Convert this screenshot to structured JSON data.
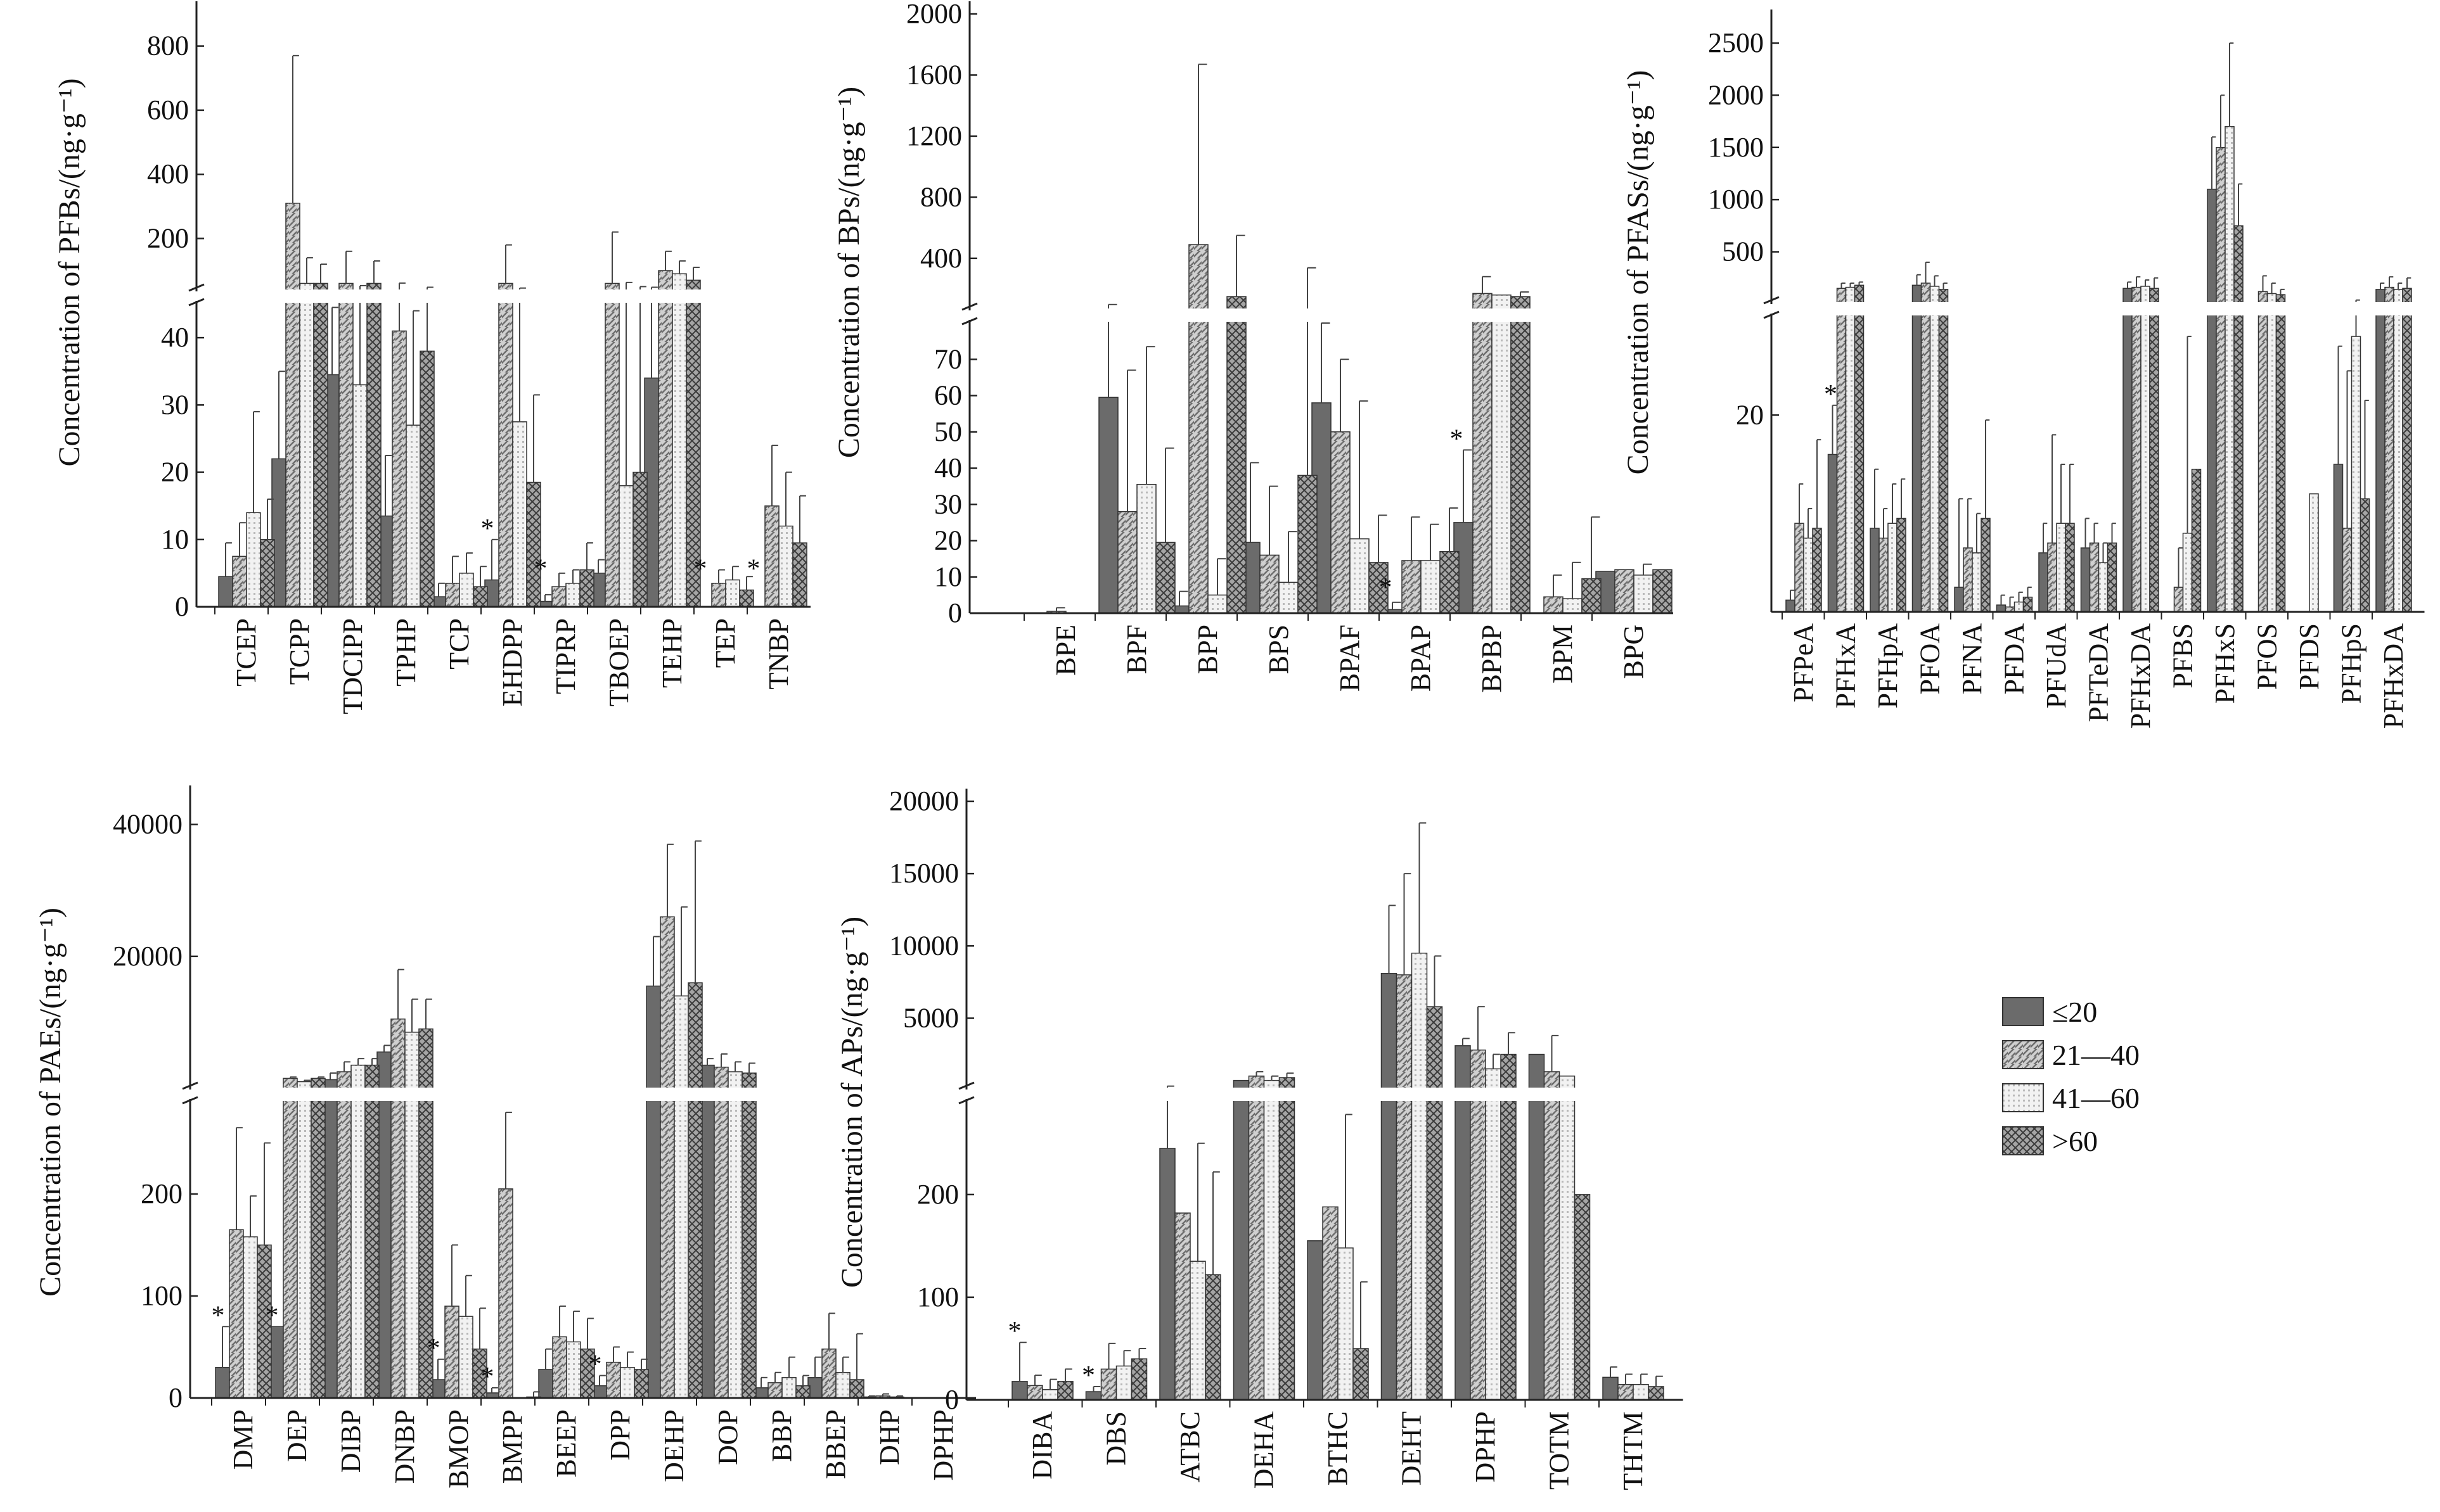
{
  "legend": {
    "entries": [
      {
        "label": "≤20",
        "color": "#6b6b6b",
        "pattern": "solid"
      },
      {
        "label": "21—40",
        "color": "#c9c9c9",
        "pattern": "diagonal"
      },
      {
        "label": "41—60",
        "color": "#f4f4f4",
        "pattern": "dots"
      },
      {
        "label": ">60",
        "color": "#9a9a9a",
        "pattern": "crosshatch"
      }
    ]
  },
  "chart_data": [
    {
      "type": "bar",
      "ylabel": "Concentration of PFBs/(ng·g⁻¹)",
      "axis_break": true,
      "lower_ylim": [
        0,
        45
      ],
      "lower_ticks": [
        0,
        10,
        20,
        30,
        40
      ],
      "upper_ylim": [
        45,
        900
      ],
      "upper_ticks": [
        200,
        400,
        600,
        800
      ],
      "categories": [
        "TCEP",
        "TCPP",
        "TDCIPP",
        "TPHP",
        "TCP",
        "EHDPP",
        "TIPRP",
        "TBOEP",
        "TEHP",
        "TEP",
        "TNBP"
      ],
      "series": [
        {
          "values": [
            4.5,
            22,
            34.5,
            13.5,
            1.5,
            4,
            0.8,
            5,
            34,
            0,
            0
          ],
          "errors": [
            5,
            13,
            10,
            9,
            2,
            6,
            1,
            2,
            14,
            0,
            0
          ]
        },
        {
          "values": [
            7.5,
            310,
            60,
            41,
            3.5,
            60,
            3,
            60,
            100,
            3.5,
            15
          ],
          "errors": [
            5,
            460,
            100,
            20,
            4,
            120,
            2,
            160,
            60,
            2,
            9
          ]
        },
        {
          "values": [
            14,
            60,
            33,
            27,
            5,
            27.5,
            3.5,
            18,
            90,
            4,
            12
          ],
          "errors": [
            15,
            80,
            20,
            17,
            3,
            18,
            2,
            45,
            40,
            2,
            8
          ]
        },
        {
          "values": [
            10,
            60,
            60,
            38,
            3,
            18.5,
            5.5,
            20,
            70,
            2.5,
            9.5
          ],
          "errors": [
            6,
            60,
            70,
            10,
            3,
            13,
            4,
            30,
            40,
            2,
            7
          ]
        }
      ],
      "annotations": [
        {
          "category": "EHDPP",
          "text": "*"
        },
        {
          "category": "TIPRP",
          "text": "*"
        },
        {
          "category": "TEP",
          "text": "*"
        },
        {
          "category": "TNBP",
          "text": "*"
        }
      ]
    },
    {
      "type": "bar",
      "ylabel": "Concentration of BPs/(ng·g⁻¹)",
      "axis_break": true,
      "lower_ylim": [
        0,
        80
      ],
      "lower_ticks": [
        0,
        10,
        20,
        30,
        40,
        50,
        60,
        70
      ],
      "upper_ylim": [
        80,
        2000
      ],
      "upper_ticks": [
        400,
        800,
        1200,
        1600,
        2000
      ],
      "categories": [
        "BPE",
        "BPF",
        "BPP",
        "BPS",
        "BPAF",
        "BPAP",
        "BPBP",
        "BPM",
        "BPG"
      ],
      "series": [
        {
          "values": [
            0,
            59.5,
            2,
            19.5,
            58,
            1,
            25,
            0,
            11.5
          ],
          "errors": [
            0,
            38,
            4,
            22,
            22,
            2,
            20,
            0,
            0
          ]
        },
        {
          "values": [
            0.5,
            28,
            490,
            16,
            50,
            14.5,
            170,
            4.5,
            12
          ],
          "errors": [
            1,
            39,
            1180,
            19,
            20,
            12,
            110,
            6,
            0
          ]
        },
        {
          "values": [
            0,
            35.5,
            5,
            8.5,
            20.5,
            14.5,
            160,
            4,
            10.5
          ],
          "errors": [
            0,
            38,
            10,
            14,
            38,
            10,
            0,
            10,
            3
          ]
        },
        {
          "values": [
            0,
            19.5,
            150,
            38,
            14,
            17,
            150,
            9.5,
            12
          ],
          "errors": [
            0,
            26,
            400,
            300,
            13,
            12,
            30,
            17,
            0
          ]
        }
      ],
      "annotations": [
        {
          "category": "BPAP",
          "text": "*"
        },
        {
          "category": "BPBP",
          "text": "*"
        }
      ]
    },
    {
      "type": "bar",
      "ylabel": "Concentration of PFASs/(ng·g⁻¹)",
      "axis_break": true,
      "lower_ylim": [
        0,
        30
      ],
      "lower_ticks": [
        20
      ],
      "upper_ylim": [
        30,
        2700
      ],
      "upper_ticks": [
        500,
        1000,
        1500,
        2000,
        2500
      ],
      "categories": [
        "PFPeA",
        "PFHxA",
        "PFHpA",
        "PFOA",
        "PFNA",
        "PFDA",
        "PFUdA",
        "PFTeDA",
        "PFHxDA",
        "PFBS",
        "PFHxS",
        "PFOS",
        "PFDS",
        "PFHpS",
        "PFHxDA"
      ],
      "series": [
        {
          "values": [
            1.2,
            16,
            8.5,
            180,
            2.5,
            0.7,
            6,
            6.5,
            150,
            0,
            1100,
            0,
            0,
            15,
            140
          ],
          "errors": [
            1,
            5,
            6,
            100,
            9,
            1,
            3,
            3,
            60,
            0,
            500,
            0,
            0,
            12,
            60
          ]
        },
        {
          "values": [
            9,
            150,
            7.5,
            200,
            6.5,
            0.5,
            7,
            7,
            160,
            2.5,
            1500,
            120,
            0,
            8.5,
            160
          ],
          "errors": [
            4,
            50,
            3,
            200,
            5,
            1,
            11,
            2,
            100,
            4,
            500,
            150,
            0,
            16,
            100
          ]
        },
        {
          "values": [
            7.5,
            160,
            9,
            170,
            6,
            1,
            9,
            5,
            170,
            8,
            1700,
            100,
            12,
            28,
            140
          ],
          "errors": [
            3,
            40,
            4,
            100,
            4,
            1,
            6,
            2,
            60,
            20,
            800,
            100,
            0,
            10,
            60
          ]
        },
        {
          "values": [
            8.5,
            180,
            9.5,
            140,
            9.5,
            1.5,
            9,
            7,
            150,
            14.5,
            750,
            90,
            0,
            11.5,
            150
          ],
          "errors": [
            9,
            30,
            4,
            60,
            10,
            1,
            6,
            2,
            100,
            0,
            400,
            50,
            0,
            10,
            100
          ]
        }
      ],
      "annotations": [
        {
          "category": "PFHxA",
          "text": "*"
        }
      ]
    },
    {
      "type": "bar",
      "ylabel": "Concentration of PAEs/(ng·g⁻¹)",
      "axis_break": true,
      "lower_ylim": [
        0,
        290
      ],
      "lower_ticks": [
        0,
        100,
        200
      ],
      "upper_ylim": [
        290,
        44000
      ],
      "upper_ticks": [
        20000,
        40000
      ],
      "categories": [
        "DMP",
        "DEP",
        "DIBP",
        "DNBP",
        "BMOP",
        "BMPP",
        "BEEP",
        "DPP",
        "DEHP",
        "DOP",
        "BBP",
        "BBEP",
        "DHP",
        "DPHP"
      ],
      "series": [
        {
          "values": [
            30,
            70,
            1300,
            5500,
            18,
            5,
            28,
            12,
            15500,
            3500,
            10,
            20,
            1,
            0
          ],
          "errors": [
            40,
            0,
            1000,
            1000,
            20,
            5,
            20,
            10,
            7500,
            1000,
            10,
            20,
            1,
            0
          ]
        },
        {
          "values": [
            165,
            1500,
            2500,
            10500,
            90,
            205,
            60,
            35,
            26000,
            3200,
            15,
            48,
            2,
            0
          ],
          "errors": [
            100,
            200,
            1500,
            7500,
            60,
            75,
            30,
            15,
            11000,
            2000,
            10,
            35,
            2,
            0
          ]
        },
        {
          "values": [
            158,
            1000,
            3500,
            8500,
            80,
            0,
            55,
            30,
            14000,
            2500,
            20,
            25,
            1,
            0
          ],
          "errors": [
            40,
            200,
            1000,
            5000,
            40,
            0,
            30,
            15,
            13500,
            1500,
            20,
            15,
            1,
            0
          ]
        },
        {
          "values": [
            150,
            1500,
            3500,
            9000,
            48,
            1,
            48,
            28,
            16000,
            2300,
            12,
            18,
            0,
            0
          ],
          "errors": [
            100,
            200,
            1000,
            4500,
            40,
            5,
            30,
            10,
            21500,
            1500,
            10,
            45,
            0,
            0
          ]
        }
      ],
      "annotations": [
        {
          "category": "DMP",
          "text": "*"
        },
        {
          "category": "DEP",
          "text": "*"
        },
        {
          "category": "BMOP",
          "text": "*"
        },
        {
          "category": "BMPP",
          "text": "*"
        },
        {
          "category": "DPP",
          "text": "*"
        }
      ]
    },
    {
      "type": "bar",
      "ylabel": "Concentration of APs/(ng·g⁻¹)",
      "axis_break": true,
      "lower_ylim": [
        0,
        290
      ],
      "lower_ticks": [
        0,
        100,
        200
      ],
      "upper_ylim": [
        290,
        20000
      ],
      "upper_ticks": [
        5000,
        10000,
        15000,
        20000
      ],
      "categories": [
        "DIBA",
        "DBS",
        "ATBC",
        "DEHA",
        "BTHC",
        "DEHT",
        "DPHP",
        "TOTM",
        "THTM"
      ],
      "series": [
        {
          "values": [
            18,
            8,
            245,
            700,
            155,
            8100,
            3100,
            2500,
            22
          ],
          "errors": [
            38,
            5,
            60,
            0,
            0,
            4700,
            500,
            0,
            10
          ]
        },
        {
          "values": [
            14,
            30,
            182,
            1000,
            188,
            8000,
            2800,
            1300,
            15
          ],
          "errors": [
            10,
            25,
            0,
            300,
            0,
            7000,
            3000,
            2500,
            10
          ]
        },
        {
          "values": [
            10,
            33,
            135,
            700,
            148,
            9500,
            1500,
            1000,
            15
          ],
          "errors": [
            10,
            15,
            115,
            300,
            130,
            9000,
            1000,
            0,
            10
          ]
        },
        {
          "values": [
            18,
            40,
            122,
            900,
            50,
            5800,
            2500,
            200,
            13
          ],
          "errors": [
            12,
            10,
            100,
            300,
            65,
            3500,
            1500,
            0,
            10
          ]
        }
      ],
      "annotations": [
        {
          "category": "DIBA",
          "text": "*"
        },
        {
          "category": "DBS",
          "text": "*"
        }
      ]
    }
  ]
}
